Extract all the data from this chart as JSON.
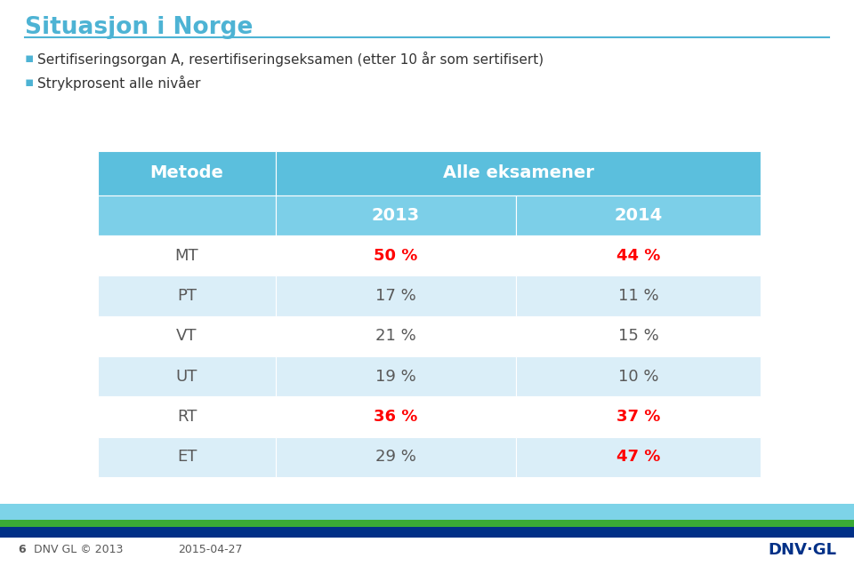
{
  "title": "Situasjon i Norge",
  "bullet1": "Sertifiseringsorgan A, resertifiseringseksamen (etter 10 år som sertifisert)",
  "bullet2": "Strykprosent alle nivåer",
  "table_header_col1": "Metode",
  "table_header_span": "Alle eksamener",
  "col2013": "2013",
  "col2014": "2014",
  "rows": [
    {
      "method": "MT",
      "val2013": "50 %",
      "val2014": "44 %",
      "red2013": true,
      "red2014": true
    },
    {
      "method": "PT",
      "val2013": "17 %",
      "val2014": "11 %",
      "red2013": false,
      "red2014": false
    },
    {
      "method": "VT",
      "val2013": "21 %",
      "val2014": "15 %",
      "red2013": false,
      "red2014": false
    },
    {
      "method": "UT",
      "val2013": "19 %",
      "val2014": "10 %",
      "red2013": false,
      "red2014": false
    },
    {
      "method": "RT",
      "val2013": "36 %",
      "val2014": "37 %",
      "red2013": true,
      "red2014": true
    },
    {
      "method": "ET",
      "val2013": "29 %",
      "val2014": "47 %",
      "red2013": false,
      "red2014": true
    }
  ],
  "bg_color": "#ffffff",
  "title_color": "#4db3d4",
  "title_underline_color": "#4db3d4",
  "bullet_color": "#4db3d4",
  "header_bg_color": "#5bbfdd",
  "subheader_bg_color": "#7ccfe8",
  "row_odd_bg": "#daeef8",
  "row_even_bg": "#ffffff",
  "header_text_color": "#ffffff",
  "normal_text_color": "#595959",
  "red_text_color": "#ff0000",
  "footer_stripe_teal": "#7dd3e8",
  "footer_stripe_green": "#3aaa35",
  "footer_stripe_dark": "#003087",
  "footer_text_color": "#595959",
  "footer_text": "DNV GL © 2013",
  "footer_date": "2015-04-27",
  "footer_page": "6",
  "dnvgl_text": "DNV·GL"
}
